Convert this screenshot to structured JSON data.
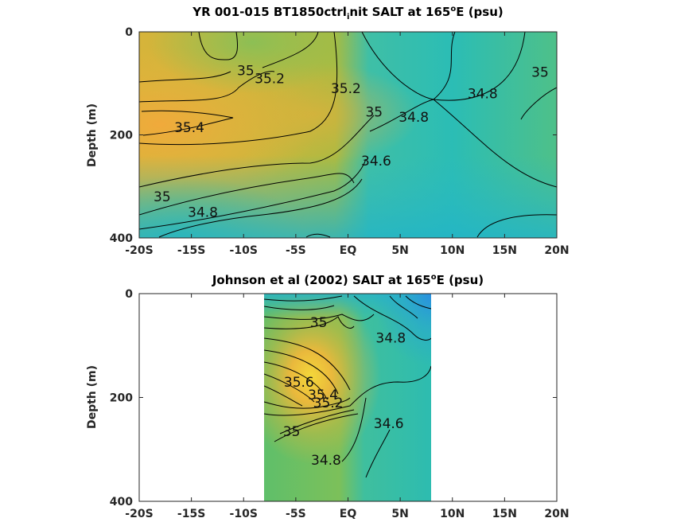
{
  "chart_data": [
    {
      "type": "heatmap",
      "title_main": "YR 001-015 BT1850ctrl",
      "title_sub": "i",
      "title_post": "nit SALT at 165",
      "title_sup": "o",
      "title_end": "E (psu)",
      "ylabel": "Depth (m)",
      "xticks": [
        "-20S",
        "-15S",
        "-10S",
        "-5S",
        "EQ",
        "5N",
        "10N",
        "15N",
        "20N"
      ],
      "xtick_values": [
        -20,
        -15,
        -10,
        -5,
        0,
        5,
        10,
        15,
        20
      ],
      "yticks": [
        "0",
        "200",
        "400"
      ],
      "ytick_values": [
        0,
        200,
        400
      ],
      "xlim": [
        -20,
        20
      ],
      "ylim": [
        400,
        0
      ],
      "data_extent_x": [
        -20,
        20
      ],
      "contour_labels": [
        {
          "text": "35",
          "x": -9.8,
          "y": 75
        },
        {
          "text": "35.2",
          "x": -7.5,
          "y": 90
        },
        {
          "text": "35.2",
          "x": -0.2,
          "y": 110
        },
        {
          "text": "35.4",
          "x": -15.2,
          "y": 185
        },
        {
          "text": "35",
          "x": 2.5,
          "y": 155
        },
        {
          "text": "34.8",
          "x": 6.3,
          "y": 165
        },
        {
          "text": "34.8",
          "x": 12.9,
          "y": 120
        },
        {
          "text": "35",
          "x": 18.4,
          "y": 78
        },
        {
          "text": "34.6",
          "x": 2.7,
          "y": 250
        },
        {
          "text": "35",
          "x": -17.8,
          "y": 320
        },
        {
          "text": "34.8",
          "x": -13.9,
          "y": 350
        }
      ]
    },
    {
      "type": "heatmap",
      "title_main": "Johnson et al (2002) SALT at 165",
      "title_sup": "o",
      "title_end": "E (psu)",
      "ylabel": "Depth (m)",
      "xticks": [
        "-20S",
        "-15S",
        "-10S",
        "-5S",
        "EQ",
        "5N",
        "10N",
        "15N",
        "20N"
      ],
      "xtick_values": [
        -20,
        -15,
        -10,
        -5,
        0,
        5,
        10,
        15,
        20
      ],
      "yticks": [
        "0",
        "200",
        "400"
      ],
      "ytick_values": [
        0,
        200,
        400
      ],
      "xlim": [
        -20,
        20
      ],
      "ylim": [
        400,
        0
      ],
      "data_extent_x": [
        -8,
        8
      ],
      "contour_labels": [
        {
          "text": "35",
          "x": -2.8,
          "y": 55
        },
        {
          "text": "34.8",
          "x": 4.1,
          "y": 85
        },
        {
          "text": "35.6",
          "x": -4.7,
          "y": 170
        },
        {
          "text": "35.4",
          "x": -2.4,
          "y": 195
        },
        {
          "text": "35.2",
          "x": -1.9,
          "y": 210
        },
        {
          "text": "35",
          "x": -5.4,
          "y": 265
        },
        {
          "text": "34.6",
          "x": 3.9,
          "y": 250
        },
        {
          "text": "34.8",
          "x": -2.1,
          "y": 320
        }
      ]
    }
  ]
}
